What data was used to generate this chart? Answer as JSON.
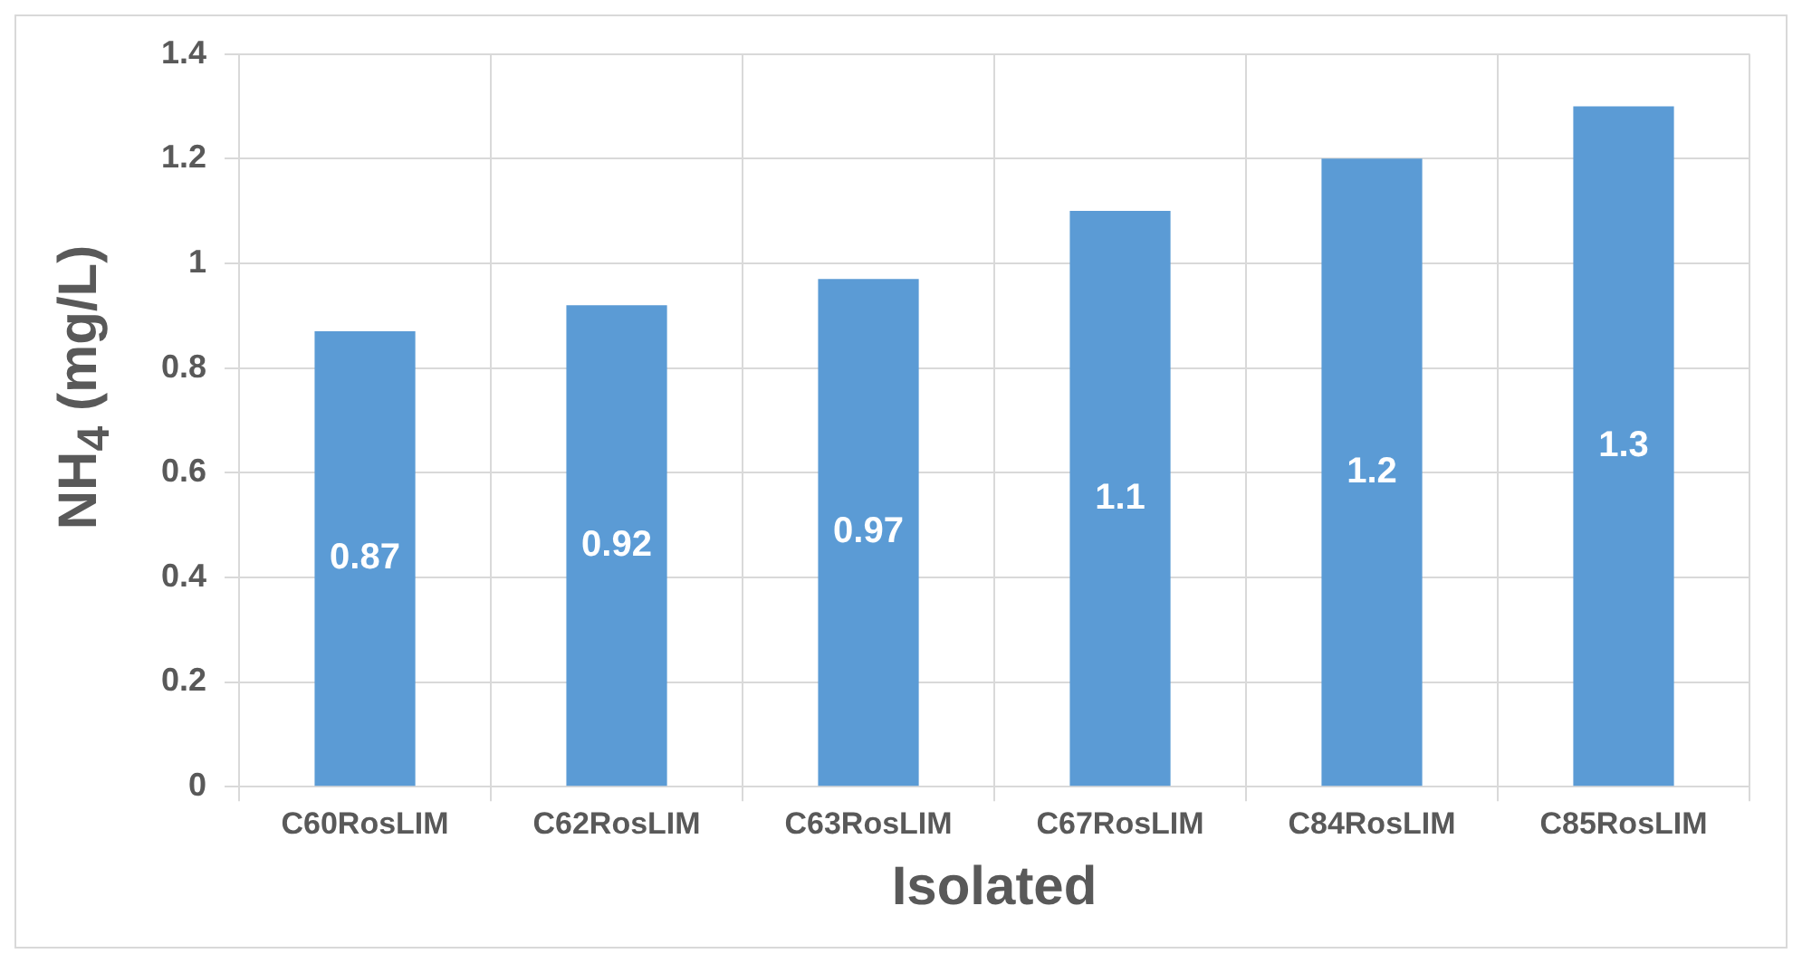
{
  "chart_data": {
    "type": "bar",
    "xlabel": "Isolated",
    "ylabel": "NH$_{4}$ (mg/L)",
    "categories": [
      "C60RosLIM",
      "C62RosLIM",
      "C63RosLIM",
      "C67RosLIM",
      "C84RosLIM",
      "C85RosLIM"
    ],
    "values": [
      0.87,
      0.92,
      0.97,
      1.1,
      1.2,
      1.3
    ],
    "color": "#5b9bd5",
    "ylim": [
      0,
      1.4
    ],
    "yticks": [
      0,
      0.2,
      0.4,
      0.6,
      0.8,
      1,
      1.2,
      1.4
    ],
    "grid": true,
    "data_labels": true
  }
}
